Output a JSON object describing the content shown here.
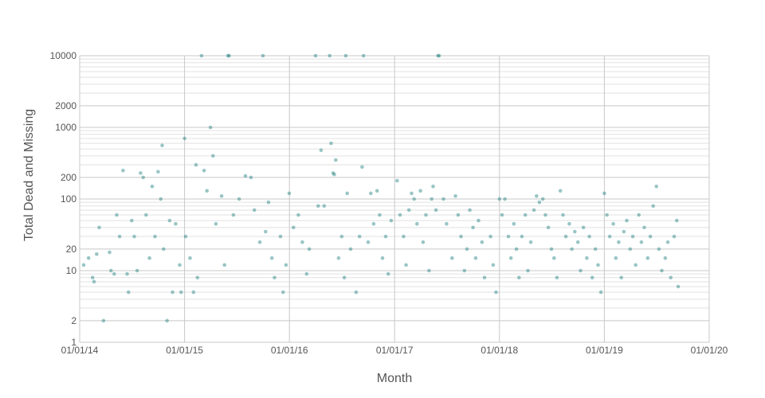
{
  "chart_data": {
    "type": "scatter",
    "title": "",
    "xlabel": "Month",
    "ylabel": "Total Dead and Missing",
    "xscale": "date",
    "yscale": "log",
    "xlim": [
      "2014-01-01",
      "2020-01-01"
    ],
    "ylim": [
      1,
      10000
    ],
    "x_ticks": [
      "01/01/14",
      "01/01/15",
      "01/01/16",
      "01/01/17",
      "01/01/18",
      "01/01/19",
      "01/01/20"
    ],
    "y_ticks": [
      1,
      2,
      10,
      20,
      100,
      200,
      1000,
      2000,
      10000
    ],
    "grid": true,
    "legend": "none",
    "marker_color": "#1f7f7f",
    "series": [
      {
        "points": [
          [
            "2014-01-15",
            12
          ],
          [
            "2014-02-01",
            15
          ],
          [
            "2014-02-15",
            8
          ],
          [
            "2014-02-20",
            7
          ],
          [
            "2014-03-01",
            17
          ],
          [
            "2014-03-10",
            40
          ],
          [
            "2014-03-25",
            2
          ],
          [
            "2014-04-15",
            18
          ],
          [
            "2014-04-20",
            10
          ],
          [
            "2014-05-01",
            9
          ],
          [
            "2014-05-10",
            60
          ],
          [
            "2014-05-20",
            30
          ],
          [
            "2014-06-01",
            250
          ],
          [
            "2014-06-15",
            9
          ],
          [
            "2014-06-20",
            5
          ],
          [
            "2014-07-01",
            50
          ],
          [
            "2014-07-10",
            30
          ],
          [
            "2014-07-20",
            10
          ],
          [
            "2014-08-01",
            230
          ],
          [
            "2014-08-10",
            200
          ],
          [
            "2014-08-20",
            60
          ],
          [
            "2014-09-01",
            15
          ],
          [
            "2014-09-10",
            150
          ],
          [
            "2014-09-20",
            30
          ],
          [
            "2014-10-01",
            240
          ],
          [
            "2014-10-10",
            100
          ],
          [
            "2014-10-15",
            560
          ],
          [
            "2014-10-20",
            20
          ],
          [
            "2014-11-01",
            2
          ],
          [
            "2014-11-10",
            50
          ],
          [
            "2014-11-20",
            5
          ],
          [
            "2014-12-01",
            45
          ],
          [
            "2014-12-15",
            12
          ],
          [
            "2014-12-20",
            5
          ],
          [
            "2015-01-01",
            700
          ],
          [
            "2015-01-05",
            30
          ],
          [
            "2015-01-20",
            15
          ],
          [
            "2015-02-01",
            5
          ],
          [
            "2015-02-10",
            300
          ],
          [
            "2015-02-15",
            8
          ],
          [
            "2015-03-01",
            10000
          ],
          [
            "2015-03-10",
            250
          ],
          [
            "2015-03-20",
            130
          ],
          [
            "2015-04-01",
            1000
          ],
          [
            "2015-04-10",
            400
          ],
          [
            "2015-04-20",
            45
          ],
          [
            "2015-05-10",
            110
          ],
          [
            "2015-05-20",
            12
          ],
          [
            "2015-06-01",
            10000
          ],
          [
            "2015-06-05",
            10000
          ],
          [
            "2015-06-20",
            60
          ],
          [
            "2015-07-10",
            100
          ],
          [
            "2015-08-01",
            210
          ],
          [
            "2015-08-20",
            200
          ],
          [
            "2015-09-01",
            70
          ],
          [
            "2015-09-20",
            25
          ],
          [
            "2015-10-01",
            10000
          ],
          [
            "2015-10-10",
            35
          ],
          [
            "2015-10-20",
            90
          ],
          [
            "2015-11-01",
            15
          ],
          [
            "2015-11-10",
            8
          ],
          [
            "2015-12-01",
            30
          ],
          [
            "2015-12-10",
            5
          ],
          [
            "2015-12-20",
            12
          ],
          [
            "2015-12-31",
            120
          ],
          [
            "2016-01-15",
            40
          ],
          [
            "2016-02-01",
            60
          ],
          [
            "2016-02-15",
            25
          ],
          [
            "2016-03-01",
            9
          ],
          [
            "2016-03-10",
            20
          ],
          [
            "2016-04-01",
            10000
          ],
          [
            "2016-04-10",
            80
          ],
          [
            "2016-04-20",
            480
          ],
          [
            "2016-05-01",
            80
          ],
          [
            "2016-05-20",
            10000
          ],
          [
            "2016-05-25",
            600
          ],
          [
            "2016-06-01",
            230
          ],
          [
            "2016-06-05",
            220
          ],
          [
            "2016-06-10",
            350
          ],
          [
            "2016-06-20",
            15
          ],
          [
            "2016-07-01",
            30
          ],
          [
            "2016-07-10",
            8
          ],
          [
            "2016-07-15",
            10000
          ],
          [
            "2016-07-20",
            120
          ],
          [
            "2016-08-01",
            20
          ],
          [
            "2016-08-20",
            5
          ],
          [
            "2016-09-01",
            30
          ],
          [
            "2016-09-10",
            280
          ],
          [
            "2016-09-15",
            10000
          ],
          [
            "2016-10-01",
            25
          ],
          [
            "2016-10-10",
            120
          ],
          [
            "2016-10-20",
            45
          ],
          [
            "2016-11-01",
            130
          ],
          [
            "2016-11-10",
            60
          ],
          [
            "2016-11-20",
            15
          ],
          [
            "2016-12-01",
            30
          ],
          [
            "2016-12-10",
            9
          ],
          [
            "2016-12-20",
            50
          ],
          [
            "2017-01-10",
            180
          ],
          [
            "2017-01-20",
            60
          ],
          [
            "2017-02-01",
            30
          ],
          [
            "2017-02-10",
            12
          ],
          [
            "2017-02-20",
            70
          ],
          [
            "2017-03-01",
            120
          ],
          [
            "2017-03-10",
            100
          ],
          [
            "2017-03-20",
            45
          ],
          [
            "2017-04-01",
            130
          ],
          [
            "2017-04-10",
            25
          ],
          [
            "2017-04-20",
            60
          ],
          [
            "2017-05-01",
            10
          ],
          [
            "2017-05-10",
            100
          ],
          [
            "2017-05-15",
            150
          ],
          [
            "2017-05-25",
            70
          ],
          [
            "2017-06-01",
            10000
          ],
          [
            "2017-06-05",
            10000
          ],
          [
            "2017-06-20",
            100
          ],
          [
            "2017-07-01",
            45
          ],
          [
            "2017-07-20",
            15
          ],
          [
            "2017-08-01",
            110
          ],
          [
            "2017-08-10",
            60
          ],
          [
            "2017-08-20",
            30
          ],
          [
            "2017-09-01",
            10
          ],
          [
            "2017-09-10",
            20
          ],
          [
            "2017-09-20",
            70
          ],
          [
            "2017-10-01",
            40
          ],
          [
            "2017-10-10",
            15
          ],
          [
            "2017-10-20",
            50
          ],
          [
            "2017-11-01",
            25
          ],
          [
            "2017-11-10",
            8
          ],
          [
            "2017-12-01",
            30
          ],
          [
            "2017-12-10",
            12
          ],
          [
            "2017-12-20",
            5
          ],
          [
            "2018-01-01",
            100
          ],
          [
            "2018-01-10",
            60
          ],
          [
            "2018-01-20",
            100
          ],
          [
            "2018-02-01",
            30
          ],
          [
            "2018-02-10",
            15
          ],
          [
            "2018-02-20",
            45
          ],
          [
            "2018-03-01",
            20
          ],
          [
            "2018-03-10",
            8
          ],
          [
            "2018-03-20",
            30
          ],
          [
            "2018-04-01",
            60
          ],
          [
            "2018-04-10",
            10
          ],
          [
            "2018-04-20",
            25
          ],
          [
            "2018-05-01",
            70
          ],
          [
            "2018-05-10",
            110
          ],
          [
            "2018-05-20",
            90
          ],
          [
            "2018-06-01",
            100
          ],
          [
            "2018-06-10",
            60
          ],
          [
            "2018-06-20",
            40
          ],
          [
            "2018-07-01",
            20
          ],
          [
            "2018-07-10",
            15
          ],
          [
            "2018-07-20",
            8
          ],
          [
            "2018-08-01",
            130
          ],
          [
            "2018-08-10",
            60
          ],
          [
            "2018-08-20",
            30
          ],
          [
            "2018-09-01",
            45
          ],
          [
            "2018-09-10",
            20
          ],
          [
            "2018-09-20",
            35
          ],
          [
            "2018-10-01",
            25
          ],
          [
            "2018-10-10",
            10
          ],
          [
            "2018-10-20",
            40
          ],
          [
            "2018-11-01",
            15
          ],
          [
            "2018-11-10",
            30
          ],
          [
            "2018-11-20",
            8
          ],
          [
            "2018-12-01",
            20
          ],
          [
            "2018-12-10",
            12
          ],
          [
            "2018-12-20",
            5
          ],
          [
            "2019-01-01",
            120
          ],
          [
            "2019-01-10",
            60
          ],
          [
            "2019-01-20",
            30
          ],
          [
            "2019-02-01",
            45
          ],
          [
            "2019-02-10",
            15
          ],
          [
            "2019-02-20",
            25
          ],
          [
            "2019-03-01",
            8
          ],
          [
            "2019-03-10",
            35
          ],
          [
            "2019-03-20",
            50
          ],
          [
            "2019-04-01",
            20
          ],
          [
            "2019-04-10",
            30
          ],
          [
            "2019-04-20",
            12
          ],
          [
            "2019-05-01",
            60
          ],
          [
            "2019-05-10",
            25
          ],
          [
            "2019-05-20",
            40
          ],
          [
            "2019-06-01",
            15
          ],
          [
            "2019-06-10",
            30
          ],
          [
            "2019-06-20",
            80
          ],
          [
            "2019-07-01",
            150
          ],
          [
            "2019-07-10",
            20
          ],
          [
            "2019-07-20",
            10
          ],
          [
            "2019-08-01",
            15
          ],
          [
            "2019-08-10",
            25
          ],
          [
            "2019-08-20",
            8
          ],
          [
            "2019-09-01",
            30
          ],
          [
            "2019-09-10",
            50
          ],
          [
            "2019-09-15",
            6
          ]
        ]
      }
    ]
  }
}
